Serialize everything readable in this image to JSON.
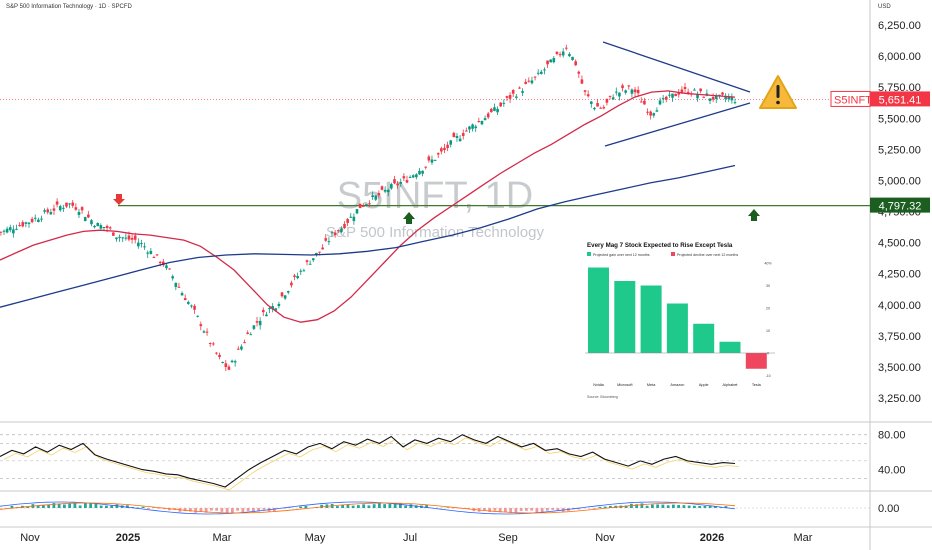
{
  "header": {
    "symbol_title": "S&P 500 Information Technology · 1D · SPCFD",
    "currency": "USD"
  },
  "watermark": {
    "ticker": "S5INFT, 1D",
    "name": "S&P 500 Information Technology"
  },
  "price_axis": {
    "ticks": [
      "6,250.00",
      "6,000.00",
      "5,750.00",
      "5,500.00",
      "5,250.00",
      "5,000.00",
      "4,750.00",
      "4,500.00",
      "4,250.00",
      "4,000.00",
      "3,750.00",
      "3,500.00",
      "3,250.00"
    ]
  },
  "time_axis": {
    "labels": [
      {
        "text": "Nov",
        "bold": false
      },
      {
        "text": "2025",
        "bold": true
      },
      {
        "text": "Mar",
        "bold": false
      },
      {
        "text": "May",
        "bold": false
      },
      {
        "text": "Jul",
        "bold": false
      },
      {
        "text": "Sep",
        "bold": false
      },
      {
        "text": "Nov",
        "bold": false
      },
      {
        "text": "2026",
        "bold": true
      },
      {
        "text": "Mar",
        "bold": false
      }
    ]
  },
  "current_price": {
    "ticker": "S5INFT",
    "value": "5,651.41",
    "color": "#f23645"
  },
  "level_label": {
    "value": "4,797.32",
    "color": "#1b5e20"
  },
  "warning_icon": "warning-triangle-icon",
  "rsi": {
    "ticks": [
      "80.00",
      "40.00"
    ]
  },
  "macd": {
    "ticks": [
      "0.00"
    ]
  },
  "colors": {
    "up": "#089981",
    "down": "#f23645",
    "ma_short": "#d3294a",
    "ma_long": "#1e3a8a",
    "trendline": "#1e3a8a",
    "level": "#3d7a2d"
  },
  "inset": {
    "title": "Every Mag 7 Stock Expected to Rise Except Tesla",
    "legend": [
      "Projected gain over next 12 months",
      "Projected decline over next 12 months"
    ],
    "source": "Source: Bloomberg",
    "y_ticks": [
      "40%",
      "30",
      "20",
      "10",
      "0",
      "-10"
    ]
  },
  "chart_data": [
    {
      "type": "line",
      "title": "S5INFT, 1D",
      "subtitle": "S&P 500 Information Technology",
      "ylim": [
        3250,
        6250
      ],
      "x_labels": [
        "Nov",
        "2025",
        "Mar",
        "May",
        "Jul",
        "Sep",
        "Nov",
        "2026",
        "Mar"
      ],
      "series": [
        {
          "values": [
            4590,
            4625,
            4650,
            4680,
            4720,
            4760,
            4790,
            4810,
            4775,
            4700,
            4640,
            4620,
            4560,
            4530,
            4520,
            4470,
            4400,
            4330,
            4230,
            4100,
            3980,
            3850,
            3700,
            3560,
            3480,
            3620,
            3760,
            3860,
            3950,
            4000,
            4100,
            4200,
            4300,
            4380,
            4450,
            4560,
            4620,
            4700,
            4790,
            4840,
            4880,
            4930,
            4970,
            5010,
            5070,
            5120,
            5180,
            5240,
            5320,
            5380,
            5440,
            5490,
            5540,
            5600,
            5670,
            5720,
            5780,
            5840,
            5920,
            5990,
            6080,
            5940,
            5700,
            5600,
            5580,
            5690,
            5720,
            5740,
            5650,
            5540,
            5620,
            5660,
            5710,
            5720,
            5700,
            5680,
            5655,
            5670,
            5651.41
          ]
        },
        {
          "values": [
            4360,
            4420,
            4480,
            4520,
            4560,
            4590,
            4600,
            4590,
            4570,
            4560,
            4540,
            4520,
            4470,
            4380,
            4280,
            4140,
            4000,
            3900,
            3860,
            3880,
            3950,
            4060,
            4200,
            4340,
            4480,
            4600,
            4700,
            4790,
            4880,
            4970,
            5060,
            5140,
            5220,
            5290,
            5370,
            5450,
            5520,
            5600,
            5670,
            5710,
            5720,
            5700,
            5690,
            5680,
            5670
          ]
        },
        {
          "values": [
            3980,
            4040,
            4100,
            4160,
            4220,
            4280,
            4340,
            4380,
            4400,
            4410,
            4405,
            4400,
            4410,
            4430,
            4460,
            4510,
            4560,
            4620,
            4690,
            4770,
            4830,
            4880,
            4930,
            4980,
            5020,
            5070,
            5120
          ]
        }
      ],
      "annotations": [
        "4,797.32",
        "5,651.41"
      ]
    },
    {
      "type": "line",
      "title": "RSI",
      "ylim": [
        20,
        90
      ],
      "series": [
        {
          "values": [
            55,
            62,
            58,
            66,
            60,
            68,
            63,
            70,
            57,
            52,
            48,
            44,
            40,
            38,
            35,
            34,
            30,
            27,
            24,
            20,
            30,
            40,
            48,
            55,
            62,
            58,
            66,
            70,
            64,
            72,
            68,
            75,
            70,
            78,
            66,
            74,
            70,
            76,
            72,
            80,
            74,
            70,
            78,
            72,
            66,
            70,
            62,
            64,
            58,
            55,
            60,
            52,
            48,
            44,
            50,
            46,
            52,
            55,
            50,
            48,
            46,
            48,
            47
          ]
        }
      ]
    },
    {
      "type": "bar",
      "title": "Every Mag 7 Stock Expected to Rise Except Tesla",
      "categories": [
        "Nvidia",
        "Microsoft",
        "Meta",
        "Amazon",
        "Apple",
        "Alphabet",
        "Tesla"
      ],
      "values": [
        38,
        32,
        30,
        22,
        13,
        5,
        -7
      ],
      "ylim": [
        -10,
        40
      ],
      "legend": [
        "Projected gain over next 12 months",
        "Projected decline over next 12 months"
      ]
    }
  ]
}
